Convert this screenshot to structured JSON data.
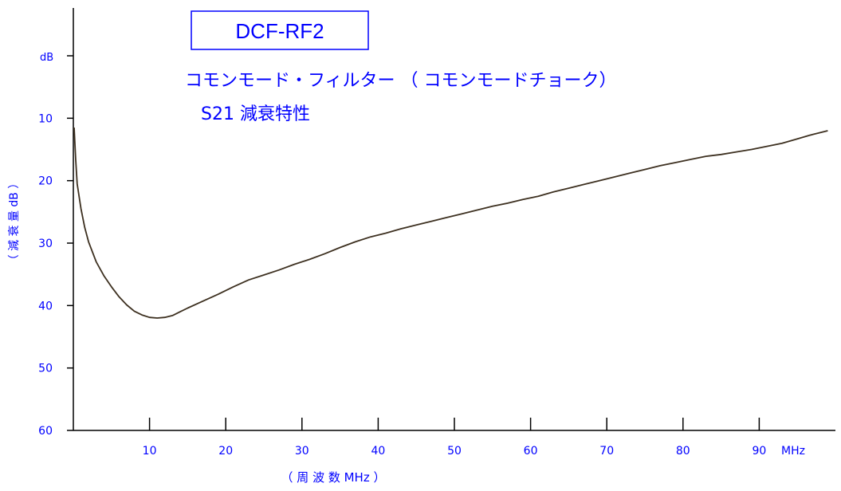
{
  "chart_data": {
    "type": "line",
    "title": "DCF-RF2",
    "subtitle_line1": "コモンモード・フィルター （ コモンモードチョーク）",
    "subtitle_line2": "S21  減衰特性",
    "ylabel": "（ 減 衰 量  dB ）",
    "xlabel": "（ 周 波 数  MHz ）",
    "y_unit_label": "dB",
    "x_unit_label": "MHz",
    "ylim": [
      0,
      60
    ],
    "y_inverted": true,
    "xlim": [
      0,
      100
    ],
    "x_ticks": [
      10,
      20,
      30,
      40,
      50,
      60,
      70,
      80,
      90
    ],
    "x_tick_labels": [
      "10",
      "20",
      "30",
      "40",
      "50",
      "60",
      "70",
      "80",
      "90"
    ],
    "y_ticks": [
      0,
      10,
      20,
      30,
      40,
      50,
      60
    ],
    "y_tick_labels": [
      "",
      "10",
      "20",
      "30",
      "40",
      "50",
      "60"
    ],
    "grid": false,
    "line_color": "#3d3020",
    "axis_color": "#000000",
    "label_color": "#0000ff",
    "series": [
      {
        "x": [
          0.1,
          0.3,
          0.5,
          1,
          1.5,
          2,
          3,
          4,
          5,
          6,
          7,
          8,
          9,
          10,
          11,
          12,
          13,
          14,
          15,
          17,
          19,
          21,
          23,
          25,
          27,
          29,
          31,
          33,
          35,
          37,
          39,
          41,
          43,
          45,
          47,
          49,
          51,
          53,
          55,
          57,
          59,
          61,
          63,
          65,
          67,
          69,
          71,
          73,
          75,
          77,
          79,
          81,
          83,
          85,
          87,
          89,
          91,
          93,
          95,
          97,
          99
        ],
        "values": [
          11.5,
          16.5,
          20.5,
          24.5,
          27.5,
          29.8,
          33.0,
          35.2,
          37.0,
          38.6,
          39.9,
          40.9,
          41.5,
          41.9,
          42.0,
          41.9,
          41.6,
          41.0,
          40.4,
          39.3,
          38.2,
          37.0,
          35.9,
          35.1,
          34.3,
          33.4,
          32.6,
          31.7,
          30.7,
          29.8,
          29.0,
          28.4,
          27.7,
          27.1,
          26.5,
          25.9,
          25.3,
          24.7,
          24.1,
          23.6,
          23.0,
          22.5,
          21.8,
          21.2,
          20.6,
          20.0,
          19.4,
          18.8,
          18.2,
          17.6,
          17.1,
          16.6,
          16.1,
          15.8,
          15.4,
          15.0,
          14.5,
          14.0,
          13.3,
          12.6,
          12.0
        ]
      }
    ]
  }
}
